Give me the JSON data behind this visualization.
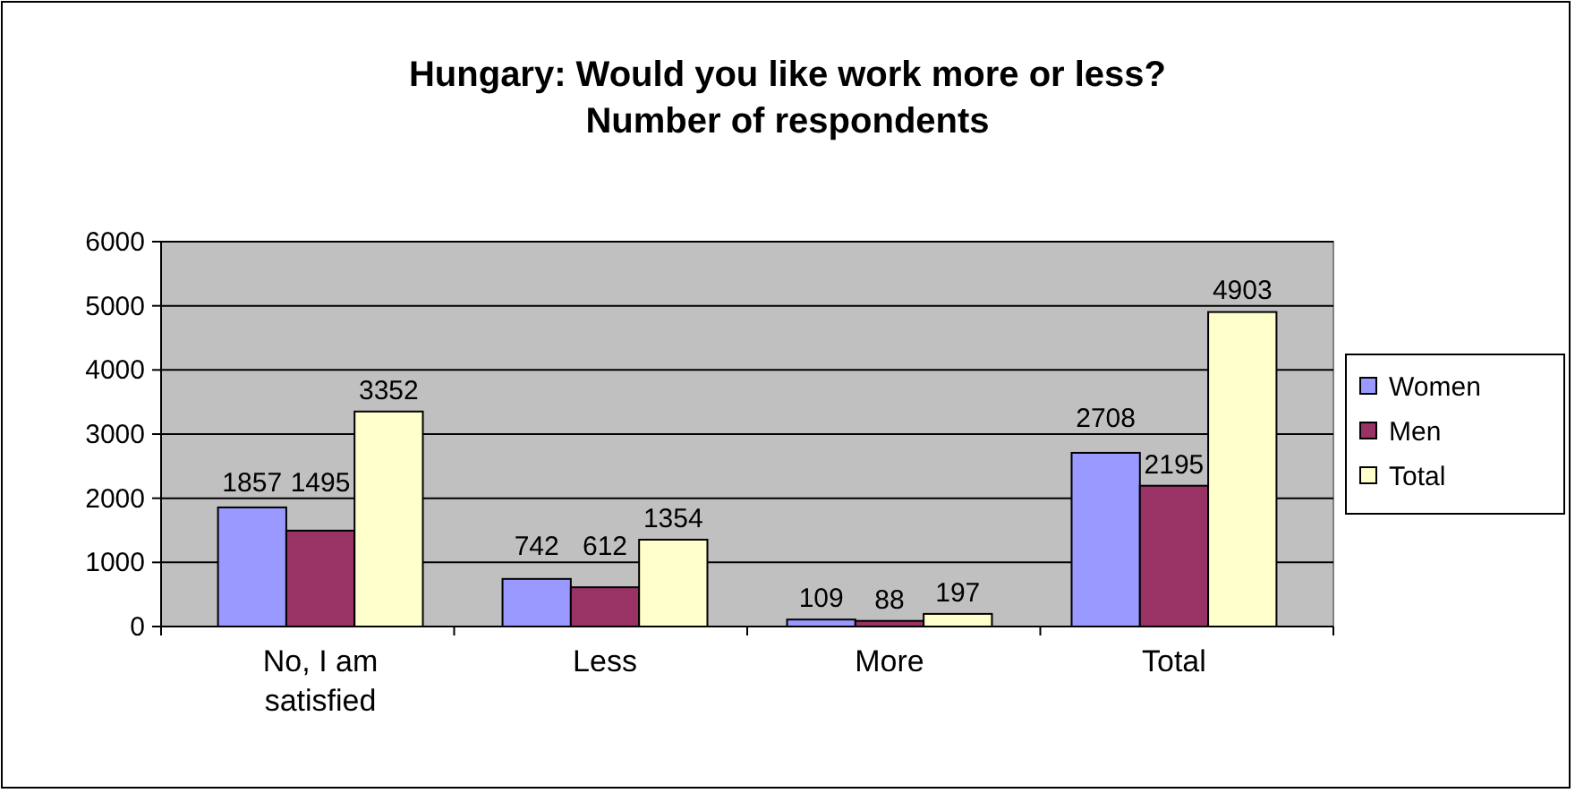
{
  "chart_data": {
    "type": "bar",
    "title": "Hungary: Would you like work more or less?",
    "subtitle": "Number of respondents",
    "categories": [
      "No, I am satisfied",
      "Less",
      "More",
      "Total"
    ],
    "series": [
      {
        "name": "Women",
        "color": "#9999ff",
        "values": [
          1857,
          742,
          109,
          2708
        ]
      },
      {
        "name": "Men",
        "color": "#993366",
        "values": [
          1495,
          612,
          88,
          2195
        ]
      },
      {
        "name": "Total",
        "color": "#ffffcc",
        "values": [
          3352,
          1354,
          197,
          4903
        ]
      }
    ],
    "ylim": [
      0,
      6000
    ],
    "yticks": [
      0,
      1000,
      2000,
      3000,
      4000,
      5000,
      6000
    ],
    "grid": "y",
    "legend": "right",
    "data_labels": true
  }
}
